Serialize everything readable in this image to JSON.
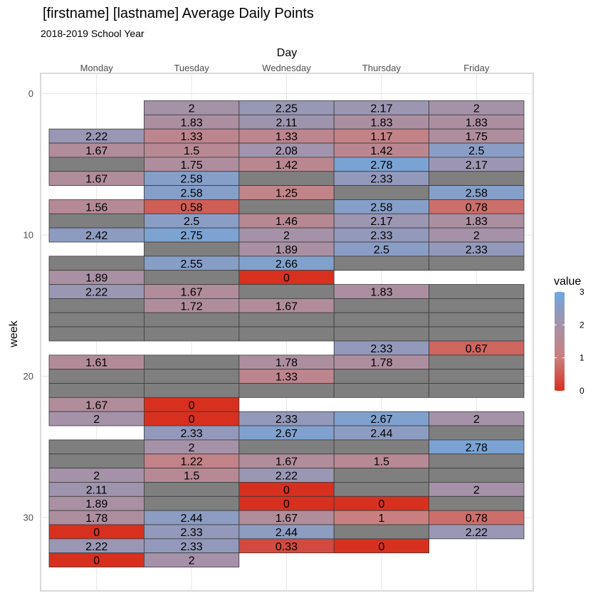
{
  "chart_data": {
    "type": "heatmap",
    "title": "[firstname] [lastname] Average Daily Points",
    "subtitle": "2018-2019 School Year",
    "xlabel": "Day",
    "ylabel": "week",
    "x_position": "top",
    "categories": [
      "Monday",
      "Tuesday",
      "Wednesday",
      "Thursday",
      "Friday"
    ],
    "y_ticks": [
      0,
      10,
      20,
      30
    ],
    "ylim": [
      -0.5,
      35
    ],
    "y_reversed": true,
    "grid": true,
    "missing_color": "#7f7f7f",
    "legend": {
      "title": "value",
      "placement": "right",
      "ticks": [
        0,
        1,
        2,
        3
      ],
      "colors": [
        "#d7301f",
        "#c97f7f",
        "#a592a8",
        "#6ea8e0"
      ]
    },
    "cells": [
      [
        1,
        1,
        2
      ],
      [
        1,
        2,
        2.25
      ],
      [
        1,
        3,
        2.17
      ],
      [
        1,
        4,
        2
      ],
      [
        2,
        1,
        1.83
      ],
      [
        2,
        2,
        2.11
      ],
      [
        2,
        3,
        1.83
      ],
      [
        2,
        4,
        1.83
      ],
      [
        3,
        0,
        2.22
      ],
      [
        3,
        1,
        1.33
      ],
      [
        3,
        2,
        1.33
      ],
      [
        3,
        3,
        1.17
      ],
      [
        3,
        4,
        1.75
      ],
      [
        4,
        0,
        1.67
      ],
      [
        4,
        1,
        1.5
      ],
      [
        4,
        2,
        2.08
      ],
      [
        4,
        3,
        1.42
      ],
      [
        4,
        4,
        2.5
      ],
      [
        5,
        0,
        null
      ],
      [
        5,
        1,
        1.75
      ],
      [
        5,
        2,
        1.42
      ],
      [
        5,
        3,
        2.78
      ],
      [
        5,
        4,
        2.17
      ],
      [
        6,
        0,
        1.67
      ],
      [
        6,
        1,
        2.58
      ],
      [
        6,
        2,
        null
      ],
      [
        6,
        3,
        2.33
      ],
      [
        6,
        4,
        null
      ],
      [
        7,
        1,
        2.58
      ],
      [
        7,
        2,
        1.25
      ],
      [
        7,
        3,
        null
      ],
      [
        7,
        4,
        2.58
      ],
      [
        8,
        0,
        1.56
      ],
      [
        8,
        1,
        0.58
      ],
      [
        8,
        2,
        null
      ],
      [
        8,
        3,
        2.58
      ],
      [
        8,
        4,
        0.78
      ],
      [
        9,
        0,
        null
      ],
      [
        9,
        1,
        2.5
      ],
      [
        9,
        2,
        1.46
      ],
      [
        9,
        3,
        2.17
      ],
      [
        9,
        4,
        1.83
      ],
      [
        10,
        0,
        2.42
      ],
      [
        10,
        1,
        2.75
      ],
      [
        10,
        2,
        2
      ],
      [
        10,
        3,
        2.33
      ],
      [
        10,
        4,
        2
      ],
      [
        11,
        1,
        null
      ],
      [
        11,
        2,
        1.89
      ],
      [
        11,
        3,
        2.5
      ],
      [
        11,
        4,
        2.33
      ],
      [
        12,
        0,
        null
      ],
      [
        12,
        1,
        2.55
      ],
      [
        12,
        2,
        2.66
      ],
      [
        12,
        3,
        null
      ],
      [
        12,
        4,
        null
      ],
      [
        13,
        0,
        1.89
      ],
      [
        13,
        1,
        null
      ],
      [
        13,
        2,
        0
      ],
      [
        14,
        0,
        2.22
      ],
      [
        14,
        1,
        1.67
      ],
      [
        14,
        2,
        null
      ],
      [
        14,
        3,
        1.83
      ],
      [
        14,
        4,
        null
      ],
      [
        15,
        0,
        null
      ],
      [
        15,
        1,
        1.72
      ],
      [
        15,
        2,
        1.67
      ],
      [
        15,
        3,
        null
      ],
      [
        15,
        4,
        null
      ],
      [
        16,
        0,
        null
      ],
      [
        16,
        1,
        null
      ],
      [
        16,
        2,
        null
      ],
      [
        16,
        3,
        null
      ],
      [
        16,
        4,
        null
      ],
      [
        17,
        0,
        null
      ],
      [
        17,
        1,
        null
      ],
      [
        17,
        2,
        null
      ],
      [
        17,
        3,
        null
      ],
      [
        17,
        4,
        null
      ],
      [
        18,
        3,
        2.33
      ],
      [
        18,
        4,
        0.67
      ],
      [
        19,
        0,
        1.61
      ],
      [
        19,
        1,
        null
      ],
      [
        19,
        2,
        1.78
      ],
      [
        19,
        3,
        1.78
      ],
      [
        19,
        4,
        null
      ],
      [
        20,
        0,
        null
      ],
      [
        20,
        1,
        null
      ],
      [
        20,
        2,
        1.33
      ],
      [
        20,
        3,
        null
      ],
      [
        20,
        4,
        null
      ],
      [
        21,
        0,
        null
      ],
      [
        21,
        1,
        null
      ],
      [
        21,
        2,
        null
      ],
      [
        21,
        3,
        null
      ],
      [
        21,
        4,
        null
      ],
      [
        22,
        0,
        1.67
      ],
      [
        22,
        1,
        0
      ],
      [
        23,
        0,
        2
      ],
      [
        23,
        1,
        0
      ],
      [
        23,
        2,
        2.33
      ],
      [
        23,
        3,
        2.67
      ],
      [
        23,
        4,
        2
      ],
      [
        24,
        1,
        2.33
      ],
      [
        24,
        2,
        2.67
      ],
      [
        24,
        3,
        2.44
      ],
      [
        24,
        4,
        null
      ],
      [
        25,
        0,
        null
      ],
      [
        25,
        1,
        2
      ],
      [
        25,
        2,
        null
      ],
      [
        25,
        3,
        null
      ],
      [
        25,
        4,
        2.78
      ],
      [
        26,
        0,
        null
      ],
      [
        26,
        1,
        1.22
      ],
      [
        26,
        2,
        1.67
      ],
      [
        26,
        3,
        1.5
      ],
      [
        26,
        4,
        null
      ],
      [
        27,
        0,
        2
      ],
      [
        27,
        1,
        1.5
      ],
      [
        27,
        2,
        2.22
      ],
      [
        27,
        3,
        null
      ],
      [
        27,
        4,
        null
      ],
      [
        28,
        0,
        2.11
      ],
      [
        28,
        1,
        null
      ],
      [
        28,
        2,
        0
      ],
      [
        28,
        3,
        null
      ],
      [
        28,
        4,
        2
      ],
      [
        29,
        0,
        1.89
      ],
      [
        29,
        1,
        null
      ],
      [
        29,
        2,
        0
      ],
      [
        29,
        3,
        0
      ],
      [
        29,
        4,
        null
      ],
      [
        30,
        0,
        1.78
      ],
      [
        30,
        1,
        2.44
      ],
      [
        30,
        2,
        1.67
      ],
      [
        30,
        3,
        1
      ],
      [
        30,
        4,
        0.78
      ],
      [
        31,
        0,
        0
      ],
      [
        31,
        1,
        2.33
      ],
      [
        31,
        2,
        2.44
      ],
      [
        31,
        3,
        null
      ],
      [
        31,
        4,
        2.22
      ],
      [
        32,
        0,
        2.22
      ],
      [
        32,
        1,
        2.33
      ],
      [
        32,
        2,
        0.33
      ],
      [
        32,
        3,
        0
      ],
      [
        33,
        0,
        0
      ],
      [
        33,
        1,
        2
      ]
    ]
  }
}
